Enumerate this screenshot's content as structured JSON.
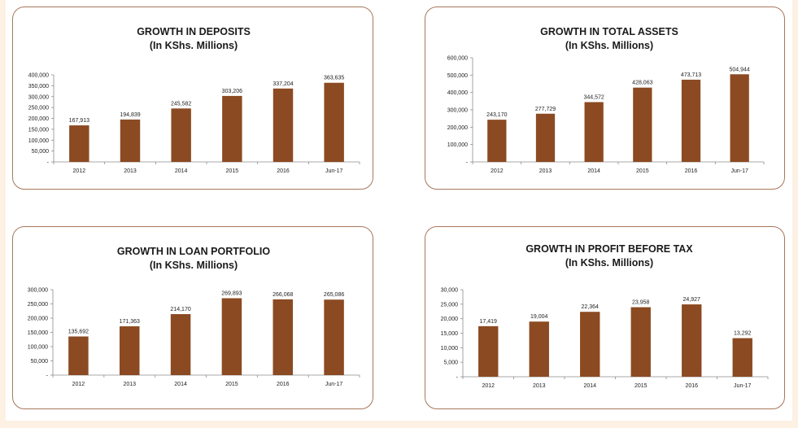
{
  "chart_data": [
    {
      "type": "bar",
      "title": "GROWTH IN DEPOSITS",
      "subtitle": "(In KShs. Millions)",
      "xlabel": "",
      "ylabel": "",
      "categories": [
        "2012",
        "2013",
        "2014",
        "2015",
        "2016",
        "Jun-17"
      ],
      "values": [
        167913,
        194839,
        245582,
        303206,
        337204,
        363635
      ],
      "value_labels": [
        "167,913",
        "194,839",
        "245,582",
        "303,206",
        "337,204",
        "363,635"
      ],
      "yticks": [
        0,
        50000,
        100000,
        150000,
        200000,
        250000,
        300000,
        350000,
        400000
      ],
      "ytick_labels": [
        "-",
        "50,000",
        "100,000",
        "150,000",
        "200,000",
        "250,000",
        "300,000",
        "350,000",
        "400,000"
      ],
      "ylim": [
        0,
        400000
      ],
      "grid": false,
      "legend": "none",
      "bar_color": "#8b4a22"
    },
    {
      "type": "bar",
      "title": "GROWTH IN TOTAL ASSETS",
      "subtitle": "(In KShs. Millions)",
      "xlabel": "",
      "ylabel": "",
      "categories": [
        "2012",
        "2013",
        "2014",
        "2015",
        "2016",
        "Jun-17"
      ],
      "values": [
        243170,
        277729,
        344572,
        428063,
        473713,
        504944
      ],
      "value_labels": [
        "243,170",
        "277,729",
        "344,572",
        "428,063",
        "473,713",
        "504,944"
      ],
      "yticks": [
        0,
        100000,
        200000,
        300000,
        400000,
        500000,
        600000
      ],
      "ytick_labels": [
        "-",
        "100,000",
        "200,000",
        "300,000",
        "400,000",
        "500,000",
        "600,000"
      ],
      "ylim": [
        0,
        600000
      ],
      "grid": false,
      "legend": "none",
      "bar_color": "#8b4a22"
    },
    {
      "type": "bar",
      "title": "GROWTH IN LOAN PORTFOLIO",
      "subtitle": "(In KShs. Millions)",
      "xlabel": "",
      "ylabel": "",
      "categories": [
        "2012",
        "2013",
        "2014",
        "2015",
        "2016",
        "Jun-17"
      ],
      "values": [
        135692,
        171363,
        214170,
        269893,
        266068,
        265086
      ],
      "value_labels": [
        "135,692",
        "171,363",
        "214,170",
        "269,893",
        "266,068",
        "265,086"
      ],
      "yticks": [
        0,
        50000,
        100000,
        150000,
        200000,
        250000,
        300000
      ],
      "ytick_labels": [
        "-",
        "50,000",
        "100,000",
        "150,000",
        "200,000",
        "250,000",
        "300,000"
      ],
      "ylim": [
        0,
        300000
      ],
      "grid": false,
      "legend": "none",
      "bar_color": "#8b4a22"
    },
    {
      "type": "bar",
      "title": "GROWTH IN PROFIT BEFORE TAX",
      "subtitle": "(In KShs. Millions)",
      "xlabel": "",
      "ylabel": "",
      "categories": [
        "2012",
        "2013",
        "2014",
        "2015",
        "2016",
        "Jun-17"
      ],
      "values": [
        17419,
        19004,
        22364,
        23958,
        24927,
        13292
      ],
      "value_labels": [
        "17,419",
        "19,004",
        "22,364",
        "23,958",
        "24,927",
        "13,292"
      ],
      "yticks": [
        0,
        5000,
        10000,
        15000,
        20000,
        25000,
        30000
      ],
      "ytick_labels": [
        "-",
        "5,000",
        "10,000",
        "15,000",
        "20,000",
        "25,000",
        "30,000"
      ],
      "ylim": [
        0,
        30000
      ],
      "grid": false,
      "legend": "none",
      "bar_color": "#8b4a22"
    }
  ]
}
